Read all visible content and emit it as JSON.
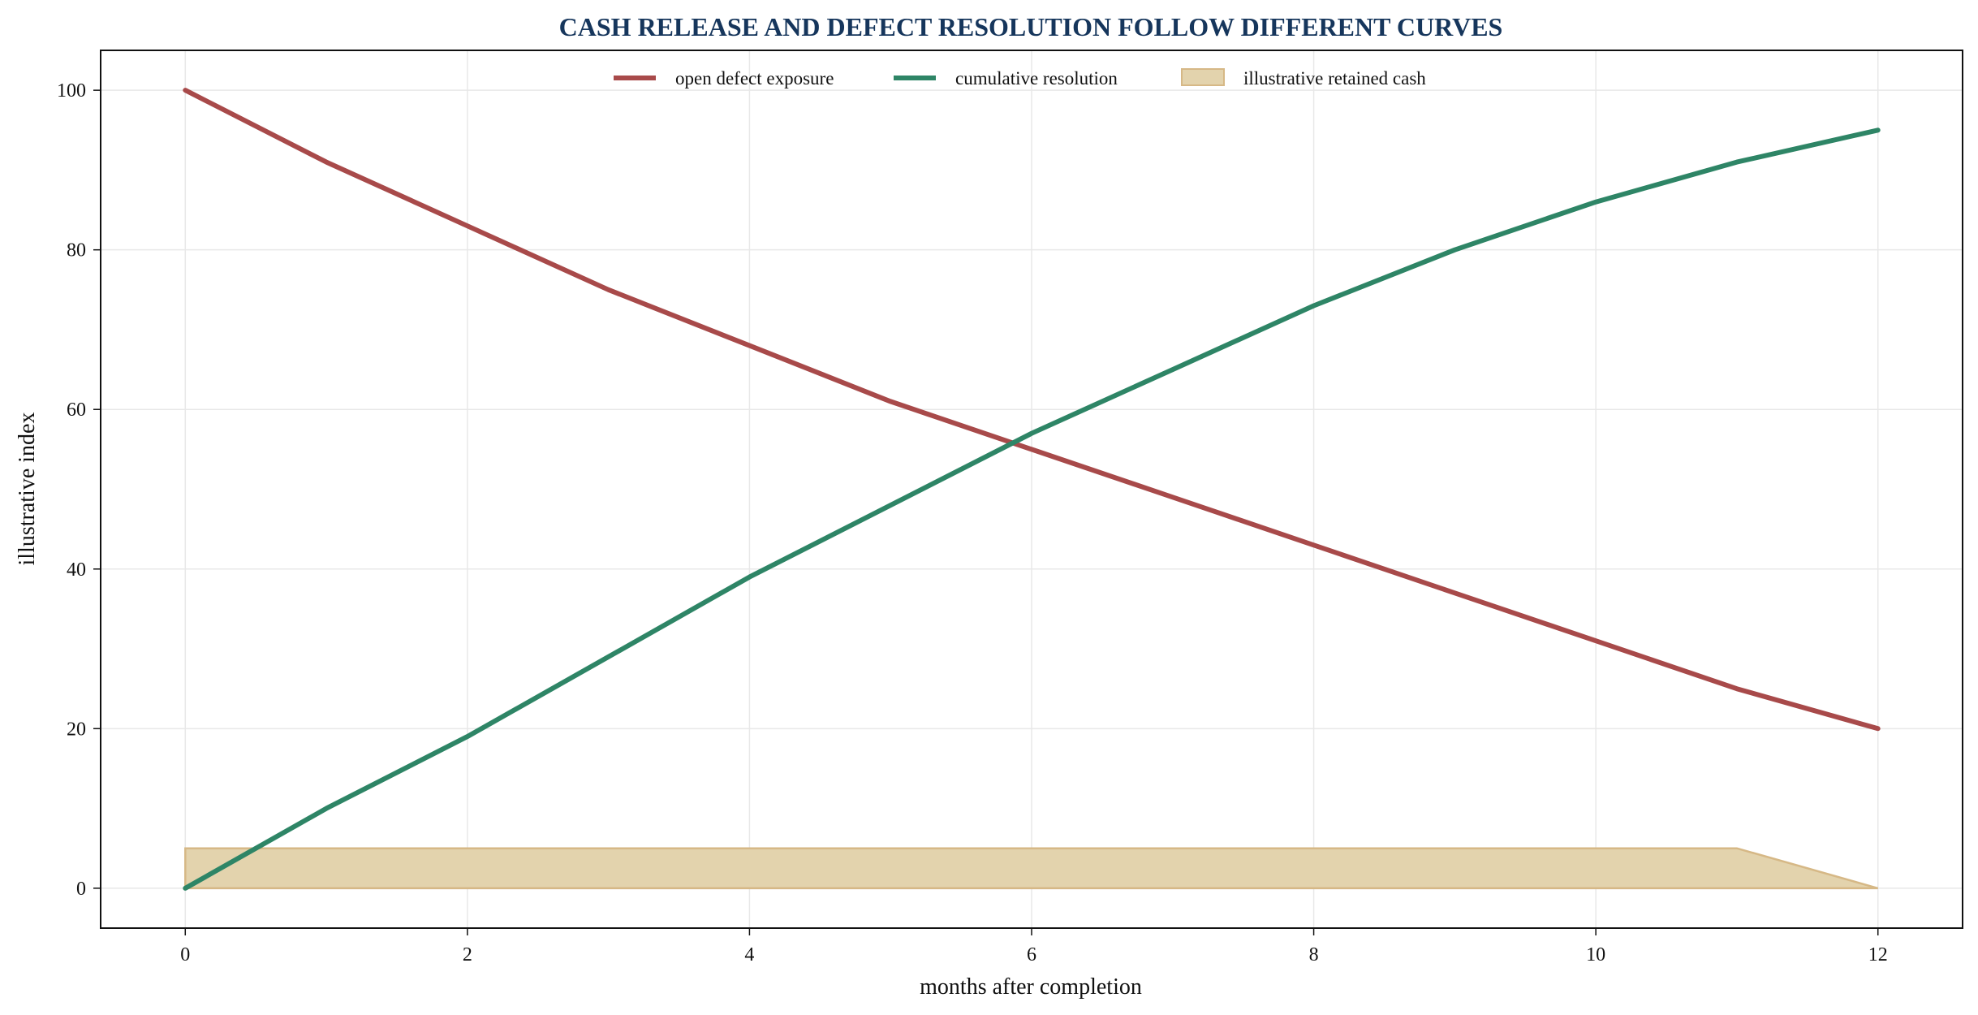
{
  "chart_data": {
    "type": "line",
    "title": "CASH RELEASE AND DEFECT RESOLUTION FOLLOW DIFFERENT CURVES",
    "xlabel": "months after completion",
    "ylabel": "illustrative index",
    "xlim": [
      -0.6,
      12.6
    ],
    "ylim": [
      -5,
      105
    ],
    "xticks": [
      0,
      2,
      4,
      6,
      8,
      10,
      12
    ],
    "yticks": [
      0,
      20,
      40,
      60,
      80,
      100
    ],
    "grid": true,
    "legend_position": "top-center",
    "x": [
      0,
      1,
      2,
      3,
      4,
      5,
      6,
      7,
      8,
      9,
      10,
      11,
      12
    ],
    "series": [
      {
        "name": "open defect exposure",
        "kind": "line",
        "color": "#a84a4a",
        "values": [
          100,
          91,
          83,
          75,
          68,
          61,
          55,
          49,
          43,
          37,
          31,
          25,
          20
        ]
      },
      {
        "name": "cumulative resolution",
        "kind": "line",
        "color": "#2e8566",
        "values": [
          0,
          10,
          19,
          29,
          39,
          48,
          57,
          65,
          73,
          80,
          86,
          91,
          95
        ]
      },
      {
        "name": "illustrative retained cash",
        "kind": "area",
        "color": "#e3d3ad",
        "edge_color": "#d6b886",
        "values": [
          5,
          5,
          5,
          5,
          5,
          5,
          5,
          5,
          5,
          5,
          5,
          5,
          0
        ]
      }
    ]
  }
}
